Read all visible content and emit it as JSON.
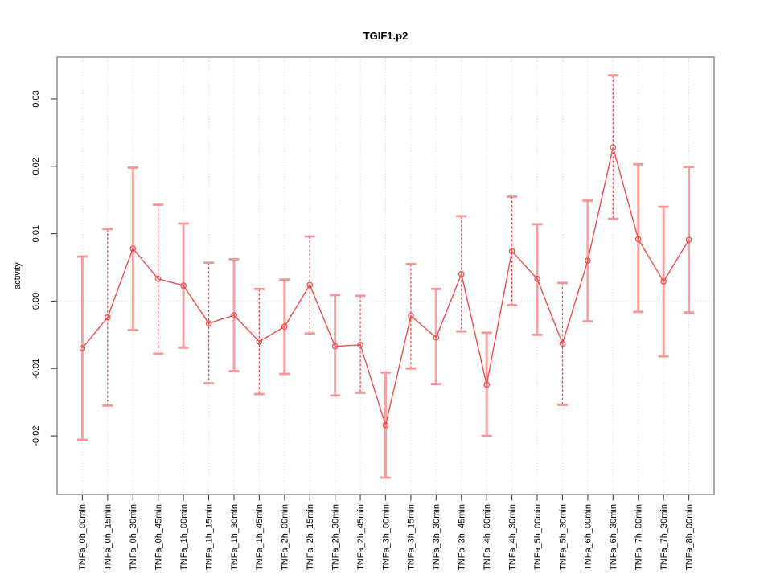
{
  "window": {
    "background": "#ffffff"
  },
  "chart_data": {
    "type": "line",
    "title": "TGIF1.p2",
    "xlabel": "",
    "ylabel": "activity",
    "ylim": [
      -0.0287,
      0.0362
    ],
    "yticks": [
      -0.02,
      -0.01,
      0.0,
      0.01,
      0.02,
      0.03
    ],
    "ytick_labels": [
      "-0.02",
      "-0.01",
      "0.00",
      "0.01",
      "0.02",
      "0.03"
    ],
    "grid": "vertical dotted gridline at every category; dotted horizontal reference line at y=0; no legend",
    "legend_position": "none",
    "marker": "open-circle",
    "error_bars": true,
    "colors": {
      "series": "#ef4e4c",
      "bar_solid": "#f8a1a1",
      "bar_dashed": "#e85052",
      "cap": "#f79595",
      "grid": "#d4d4d4",
      "zero_line": "#d8d8d8",
      "box": "#949494",
      "tick": "#4d4d4d",
      "text": "#000000"
    },
    "categories": [
      "TNFa_0h_00min",
      "TNFa_0h_15min",
      "TNFa_0h_30min",
      "TNFa_0h_45min",
      "TNFa_1h_00min",
      "TNFa_1h_15min",
      "TNFa_1h_30min",
      "TNFa_1h_45min",
      "TNFa_2h_00min",
      "TNFa_2h_15min",
      "TNFa_2h_30min",
      "TNFa_2h_45min",
      "TNFa_3h_00min",
      "TNFa_3h_15min",
      "TNFa_3h_30min",
      "TNFa_3h_45min",
      "TNFa_4h_00min",
      "TNFa_4h_30min",
      "TNFa_5h_00min",
      "TNFa_5h_30min",
      "TNFa_6h_00min",
      "TNFa_6h_30min",
      "TNFa_7h_00min",
      "TNFa_7h_30min",
      "TNFa_8h_00min"
    ],
    "points": [
      {
        "label": "TNFa_0h_00min",
        "value": -0.007,
        "lo": -0.0206,
        "hi": 0.0066,
        "bar": "solid"
      },
      {
        "label": "TNFa_0h_15min",
        "value": -0.0024,
        "lo": -0.0155,
        "hi": 0.0107,
        "bar": "dashed"
      },
      {
        "label": "TNFa_0h_30min",
        "value": 0.0078,
        "lo": -0.0043,
        "hi": 0.0198,
        "bar": "solid"
      },
      {
        "label": "TNFa_0h_45min",
        "value": 0.0033,
        "lo": -0.0078,
        "hi": 0.0143,
        "bar": "dashed"
      },
      {
        "label": "TNFa_1h_00min",
        "value": 0.0023,
        "lo": -0.0069,
        "hi": 0.0115,
        "bar": "solid"
      },
      {
        "label": "TNFa_1h_15min",
        "value": -0.0033,
        "lo": -0.0122,
        "hi": 0.0057,
        "bar": "dashed"
      },
      {
        "label": "TNFa_1h_30min",
        "value": -0.0021,
        "lo": -0.0104,
        "hi": 0.0062,
        "bar": "solid"
      },
      {
        "label": "TNFa_1h_45min",
        "value": -0.006,
        "lo": -0.0138,
        "hi": 0.0018,
        "bar": "dashed"
      },
      {
        "label": "TNFa_2h_00min",
        "value": -0.0038,
        "lo": -0.0108,
        "hi": 0.0032,
        "bar": "solid"
      },
      {
        "label": "TNFa_2h_15min",
        "value": 0.0024,
        "lo": -0.0048,
        "hi": 0.0096,
        "bar": "dashed"
      },
      {
        "label": "TNFa_2h_30min",
        "value": -0.0067,
        "lo": -0.014,
        "hi": 0.0009,
        "bar": "solid"
      },
      {
        "label": "TNFa_2h_45min",
        "value": -0.0065,
        "lo": -0.0136,
        "hi": 0.0008,
        "bar": "dashed"
      },
      {
        "label": "TNFa_3h_00min",
        "value": -0.0184,
        "lo": -0.0262,
        "hi": -0.0106,
        "bar": "solid"
      },
      {
        "label": "TNFa_3h_15min",
        "value": -0.0022,
        "lo": -0.01,
        "hi": 0.0055,
        "bar": "dashed"
      },
      {
        "label": "TNFa_3h_30min",
        "value": -0.0054,
        "lo": -0.0123,
        "hi": 0.0018,
        "bar": "solid"
      },
      {
        "label": "TNFa_3h_45min",
        "value": 0.004,
        "lo": -0.0045,
        "hi": 0.0126,
        "bar": "dashed"
      },
      {
        "label": "TNFa_4h_00min",
        "value": -0.0124,
        "lo": -0.02,
        "hi": -0.0047,
        "bar": "solid"
      },
      {
        "label": "TNFa_4h_30min",
        "value": 0.0074,
        "lo": -0.0006,
        "hi": 0.0155,
        "bar": "dashed"
      },
      {
        "label": "TNFa_5h_00min",
        "value": 0.0033,
        "lo": -0.005,
        "hi": 0.0114,
        "bar": "solid"
      },
      {
        "label": "TNFa_5h_30min",
        "value": -0.0063,
        "lo": -0.0154,
        "hi": 0.0027,
        "bar": "dashed"
      },
      {
        "label": "TNFa_6h_00min",
        "value": 0.006,
        "lo": -0.003,
        "hi": 0.0149,
        "bar": "solid"
      },
      {
        "label": "TNFa_6h_30min",
        "value": 0.0228,
        "lo": 0.0122,
        "hi": 0.0335,
        "bar": "dashed"
      },
      {
        "label": "TNFa_7h_00min",
        "value": 0.0092,
        "lo": -0.0016,
        "hi": 0.0203,
        "bar": "solid"
      },
      {
        "label": "TNFa_7h_30min",
        "value": 0.0029,
        "lo": -0.0082,
        "hi": 0.014,
        "bar": "solid"
      },
      {
        "label": "TNFa_8h_00min",
        "value": 0.0091,
        "lo": -0.0017,
        "hi": 0.0199,
        "bar": "solid"
      }
    ]
  }
}
